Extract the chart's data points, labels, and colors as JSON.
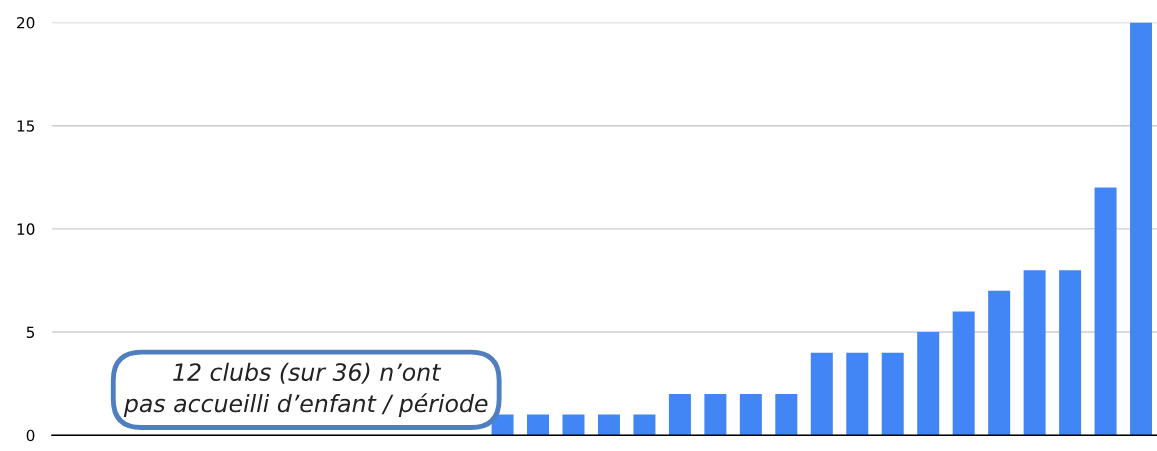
{
  "chart_data": {
    "type": "bar",
    "categories": [
      null,
      null,
      null,
      null,
      null,
      null,
      null,
      null,
      null,
      null,
      null,
      null,
      null,
      null,
      null,
      null,
      null,
      null,
      null,
      null,
      null,
      null,
      null,
      null,
      null,
      null,
      null,
      null,
      null,
      null,
      null
    ],
    "values": [
      0,
      0,
      0,
      0,
      0,
      0,
      0,
      0,
      0,
      0,
      0,
      0,
      1,
      1,
      1,
      1,
      1,
      2,
      2,
      2,
      2,
      4,
      4,
      4,
      5,
      6,
      7,
      8,
      8,
      12,
      20
    ],
    "color": "#4285f4",
    "ylim": [
      0,
      20
    ],
    "yticks": [
      0,
      5,
      10,
      15,
      20
    ],
    "grid": "y",
    "annotations": [
      "12 clubs (sur 36) n’ont\npas accueilli d’enfant / période"
    ]
  }
}
